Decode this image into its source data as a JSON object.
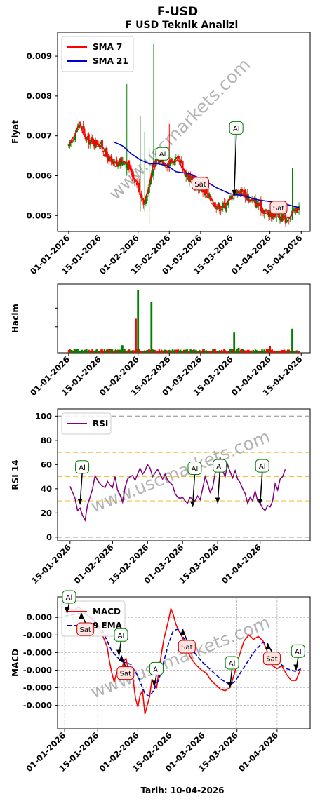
{
  "header": {
    "title": "F-USD",
    "subtitle": "F USD Teknik Analizi",
    "watermark": "www.uscmarkets.com",
    "footer": "Tarih: 10-04-2026"
  },
  "colors": {
    "up": "#008000",
    "down": "#ff0000",
    "sma7": "#ff0000",
    "sma21": "#0000cd",
    "rsi": "#800080",
    "macd": "#ff0000",
    "signal": "#0000cd",
    "buy_edge": "#008000",
    "buy_fill": "#ffffff",
    "sell_edge": "#cc0000",
    "sell_fill": "#ffe4e1",
    "band": "#f0c040"
  },
  "chart_data": [
    {
      "id": "price",
      "type": "line",
      "ylabel": "Fiyat",
      "ylim": [
        0.0046,
        0.0096
      ],
      "yticks": [
        "0.005",
        "0.006",
        "0.007",
        "0.008",
        "0.009"
      ],
      "ytick_values": [
        0.005,
        0.006,
        0.007,
        0.008,
        0.009
      ],
      "xticks": [
        "01-01-2026",
        "15-01-2026",
        "01-02-2026",
        "15-02-2026",
        "01-03-2026",
        "15-03-2026",
        "01-04-2026",
        "15-04-2026"
      ],
      "xtick_days": [
        0,
        14,
        31,
        45,
        59,
        73,
        90,
        104
      ],
      "xlim_days": [
        -5,
        108
      ],
      "legend": [
        {
          "name": "SMA 7"
        },
        {
          "name": "SMA 21"
        }
      ],
      "close_anchors": [
        [
          0,
          0.0067
        ],
        [
          3,
          0.0071
        ],
        [
          5,
          0.0073
        ],
        [
          8,
          0.0069
        ],
        [
          14,
          0.0068
        ],
        [
          18,
          0.0064
        ],
        [
          20,
          0.00625
        ],
        [
          22,
          0.0063
        ],
        [
          25,
          0.0064
        ],
        [
          28,
          0.0061
        ],
        [
          31,
          0.00575
        ],
        [
          34,
          0.0053
        ],
        [
          36,
          0.0058
        ],
        [
          38,
          0.0063
        ],
        [
          41,
          0.0064
        ],
        [
          44,
          0.0063
        ],
        [
          47,
          0.0064
        ],
        [
          50,
          0.0063
        ],
        [
          53,
          0.006
        ],
        [
          56,
          0.0058
        ],
        [
          59,
          0.0057
        ],
        [
          62,
          0.0055
        ],
        [
          65,
          0.0053
        ],
        [
          68,
          0.0052
        ],
        [
          71,
          0.0053
        ],
        [
          73,
          0.0055
        ],
        [
          75,
          0.0056
        ],
        [
          78,
          0.0056
        ],
        [
          81,
          0.0054
        ],
        [
          84,
          0.0053
        ],
        [
          86,
          0.0052
        ],
        [
          88,
          0.0051
        ],
        [
          90,
          0.005
        ],
        [
          92,
          0.0051
        ],
        [
          94,
          0.005
        ],
        [
          96,
          0.0049
        ],
        [
          97,
          0.0049
        ],
        [
          99,
          0.005
        ],
        [
          101,
          0.0051
        ],
        [
          103,
          0.0052
        ]
      ],
      "sma21_anchors": [
        [
          20,
          0.00685
        ],
        [
          24,
          0.00675
        ],
        [
          28,
          0.00655
        ],
        [
          32,
          0.0064
        ],
        [
          36,
          0.0063
        ],
        [
          40,
          0.0063
        ],
        [
          44,
          0.00625
        ],
        [
          48,
          0.0061
        ],
        [
          54,
          0.00605
        ],
        [
          60,
          0.0059
        ],
        [
          66,
          0.0057
        ],
        [
          72,
          0.00555
        ],
        [
          78,
          0.0055
        ],
        [
          84,
          0.0054
        ],
        [
          90,
          0.00535
        ],
        [
          96,
          0.0053
        ],
        [
          103,
          0.0052
        ]
      ],
      "spikes": [
        {
          "day": 26,
          "high": 0.0083,
          "low": 0.006
        },
        {
          "day": 32,
          "high": 0.0075,
          "low": 0.0051
        },
        {
          "day": 34,
          "high": 0.0071,
          "low": 0.0051
        },
        {
          "day": 38,
          "high": 0.0093,
          "low": 0.0059
        },
        {
          "day": 36,
          "high": 0.0067,
          "low": 0.0048
        },
        {
          "day": 45,
          "high": 0.0073,
          "low": 0.0061
        },
        {
          "day": 74,
          "high": 0.0072,
          "low": 0.0054
        },
        {
          "day": 100,
          "high": 0.0062,
          "low": 0.0049
        }
      ],
      "annotations": [
        {
          "label": "Al",
          "x": 74,
          "y": 0.0055,
          "text_y": 0.0072,
          "kind": "buy"
        },
        {
          "label": "Al",
          "x": 41,
          "y": 0.00635,
          "text_y": 0.00655,
          "kind": "buy"
        },
        {
          "label": "Sat",
          "x": 57,
          "y": 0.0058,
          "text_y": 0.0058,
          "kind": "sell"
        },
        {
          "label": "Sat",
          "x": 92,
          "y": 0.0051,
          "text_y": 0.0052,
          "kind": "sell"
        }
      ]
    },
    {
      "id": "volume",
      "type": "bar",
      "ylabel": "Hacim",
      "xticks": [
        "01-01-2026",
        "15-01-2026",
        "01-02-2026",
        "15-02-2026",
        "01-03-2026",
        "15-03-2026",
        "01-04-2026",
        "15-04-2026"
      ],
      "xtick_days": [
        0,
        14,
        31,
        45,
        59,
        73,
        90,
        104
      ],
      "xlim_days": [
        -5,
        108
      ],
      "ymax": 100,
      "big_bars": [
        {
          "day": 30,
          "value": 54,
          "up": false
        },
        {
          "day": 31,
          "value": 100,
          "up": true
        },
        {
          "day": 37,
          "value": 80,
          "up": true
        },
        {
          "day": 74,
          "value": 32,
          "up": true
        },
        {
          "day": 76,
          "value": 8,
          "up": true
        },
        {
          "day": 90,
          "value": 10,
          "up": false
        },
        {
          "day": 100,
          "value": 38,
          "up": true
        },
        {
          "day": 24,
          "value": 12,
          "up": true
        }
      ]
    },
    {
      "id": "rsi",
      "type": "line",
      "ylabel": "RSI 14",
      "ylim": [
        -3,
        106
      ],
      "yticks": [
        "0",
        "20",
        "40",
        "60",
        "80",
        "100"
      ],
      "ytick_values": [
        0,
        20,
        40,
        60,
        80,
        100
      ],
      "hlines": {
        "gray": [
          0,
          100
        ],
        "band": [
          30,
          50,
          70
        ]
      },
      "xticks": [
        "15-01-2026",
        "01-02-2026",
        "15-02-2026",
        "01-03-2026",
        "15-03-2026",
        "01-04-2026"
      ],
      "xtick_days": [
        14,
        31,
        45,
        59,
        73,
        90
      ],
      "xlim_days": [
        9,
        110
      ],
      "legend": [
        {
          "name": "RSI"
        }
      ],
      "anchors": [
        [
          14,
          42
        ],
        [
          16,
          32
        ],
        [
          17,
          22
        ],
        [
          18,
          24
        ],
        [
          19,
          18
        ],
        [
          20,
          14
        ],
        [
          21,
          27
        ],
        [
          22,
          33
        ],
        [
          23,
          40
        ],
        [
          24,
          51
        ],
        [
          25,
          47
        ],
        [
          26,
          44
        ],
        [
          27,
          42
        ],
        [
          28,
          41
        ],
        [
          29,
          46
        ],
        [
          30,
          43
        ],
        [
          31,
          41
        ],
        [
          32,
          50
        ],
        [
          33,
          39
        ],
        [
          34,
          35
        ],
        [
          35,
          29
        ],
        [
          36,
          41
        ],
        [
          37,
          48
        ],
        [
          38,
          50
        ],
        [
          39,
          51
        ],
        [
          40,
          47
        ],
        [
          41,
          52
        ],
        [
          42,
          57
        ],
        [
          43,
          52
        ],
        [
          44,
          55
        ],
        [
          45,
          60
        ],
        [
          46,
          57
        ],
        [
          47,
          50
        ],
        [
          48,
          53
        ],
        [
          49,
          56
        ],
        [
          50,
          52
        ],
        [
          51,
          48
        ],
        [
          52,
          52
        ],
        [
          53,
          47
        ],
        [
          54,
          45
        ],
        [
          55,
          43
        ],
        [
          56,
          36
        ],
        [
          57,
          33
        ],
        [
          58,
          32
        ],
        [
          59,
          33
        ],
        [
          60,
          30
        ],
        [
          61,
          28
        ],
        [
          62,
          33
        ],
        [
          63,
          31
        ],
        [
          64,
          30
        ],
        [
          65,
          34
        ],
        [
          66,
          31
        ],
        [
          67,
          40
        ],
        [
          68,
          50
        ],
        [
          69,
          44
        ],
        [
          70,
          37
        ],
        [
          71,
          41
        ],
        [
          72,
          53
        ],
        [
          73,
          58
        ],
        [
          74,
          66
        ],
        [
          75,
          55
        ],
        [
          76,
          50
        ],
        [
          77,
          60
        ],
        [
          78,
          54
        ],
        [
          79,
          49
        ],
        [
          80,
          55
        ],
        [
          81,
          48
        ],
        [
          82,
          45
        ],
        [
          83,
          40
        ],
        [
          84,
          36
        ],
        [
          85,
          28
        ],
        [
          86,
          33
        ],
        [
          87,
          30
        ],
        [
          88,
          38
        ],
        [
          89,
          30
        ],
        [
          90,
          28
        ],
        [
          91,
          24
        ],
        [
          92,
          22
        ],
        [
          93,
          26
        ],
        [
          94,
          25
        ],
        [
          95,
          30
        ],
        [
          96,
          44
        ],
        [
          97,
          39
        ],
        [
          98,
          48
        ],
        [
          99,
          50
        ],
        [
          100,
          56
        ]
      ],
      "annotations": [
        {
          "label": "Al",
          "x": 18,
          "y": 27,
          "text_y": 58,
          "kind": "buy"
        },
        {
          "label": "Al",
          "x": 63,
          "y": 25,
          "text_y": 57,
          "kind": "buy"
        },
        {
          "label": "Al",
          "x": 73,
          "y": 28,
          "text_y": 59,
          "kind": "buy"
        },
        {
          "label": "Al",
          "x": 90,
          "y": 27,
          "text_y": 59,
          "kind": "buy"
        }
      ]
    },
    {
      "id": "macd",
      "type": "line",
      "ylabel": "MACD",
      "ylim": [
        -7.6,
        1.4
      ],
      "yticks": [
        "0.000",
        "-0.000",
        "-0.000",
        "-0.000",
        "-0.000",
        "-0.000"
      ],
      "ytick_values": [
        0,
        -1.2,
        -2.4,
        -3.6,
        -4.8,
        -6.0
      ],
      "xticks": [
        "01-01-2026",
        "15-01-2026",
        "01-02-2026",
        "15-02-2026",
        "01-03-2026",
        "15-03-2026",
        "01-04-2026"
      ],
      "xtick_days": [
        0,
        14,
        31,
        45,
        59,
        73,
        90
      ],
      "xlim_days": [
        -3,
        104
      ],
      "legend": [
        {
          "name": "MACD"
        },
        {
          "name": "9 EMA"
        }
      ],
      "macd_anchors": [
        [
          0,
          0.3
        ],
        [
          2,
          0.6
        ],
        [
          4,
          0.5
        ],
        [
          6,
          0.7
        ],
        [
          8,
          0.4
        ],
        [
          10,
          0.1
        ],
        [
          12,
          -0.2
        ],
        [
          14,
          -0.6
        ],
        [
          16,
          -1.2
        ],
        [
          18,
          -2.0
        ],
        [
          19,
          -3.0
        ],
        [
          20,
          -3.8
        ],
        [
          21,
          -4.4
        ],
        [
          22,
          -3.8
        ],
        [
          23,
          -3.5
        ],
        [
          24,
          -3.8
        ],
        [
          25,
          -3.0
        ],
        [
          26,
          -2.8
        ],
        [
          27,
          -3.6
        ],
        [
          28,
          -4.0
        ],
        [
          29,
          -4.2
        ],
        [
          30,
          -5.5
        ],
        [
          31,
          -6.1
        ],
        [
          32,
          -5.3
        ],
        [
          33,
          -5.0
        ],
        [
          34,
          -6.6
        ],
        [
          35,
          -6.0
        ],
        [
          36,
          -5.4
        ],
        [
          37,
          -4.2
        ],
        [
          38,
          -4.7
        ],
        [
          39,
          -4.8
        ],
        [
          40,
          -3.5
        ],
        [
          42,
          -1.5
        ],
        [
          44,
          -0.2
        ],
        [
          45,
          0.6
        ],
        [
          46,
          0.2
        ],
        [
          47,
          -0.4
        ],
        [
          48,
          -0.8
        ],
        [
          50,
          -1.4
        ],
        [
          52,
          -2.3
        ],
        [
          54,
          -2.9
        ],
        [
          56,
          -3.3
        ],
        [
          58,
          -3.6
        ],
        [
          60,
          -3.8
        ],
        [
          62,
          -4.3
        ],
        [
          64,
          -4.6
        ],
        [
          66,
          -4.9
        ],
        [
          68,
          -5.0
        ],
        [
          70,
          -4.8
        ],
        [
          72,
          -3.8
        ],
        [
          74,
          -2.6
        ],
        [
          76,
          -1.6
        ],
        [
          78,
          -1.2
        ],
        [
          80,
          -1.5
        ],
        [
          82,
          -1.3
        ],
        [
          84,
          -1.6
        ],
        [
          86,
          -2.4
        ],
        [
          88,
          -3.3
        ],
        [
          90,
          -3.5
        ],
        [
          92,
          -3.3
        ],
        [
          94,
          -3.9
        ],
        [
          96,
          -4.3
        ],
        [
          98,
          -4.3
        ],
        [
          100,
          -3.5
        ]
      ],
      "signal_anchors": [
        [
          0,
          0.1
        ],
        [
          4,
          0.2
        ],
        [
          8,
          0.3
        ],
        [
          12,
          -0.1
        ],
        [
          16,
          -0.9
        ],
        [
          20,
          -2.3
        ],
        [
          24,
          -3.0
        ],
        [
          28,
          -3.2
        ],
        [
          31,
          -4.0
        ],
        [
          34,
          -5.2
        ],
        [
          36,
          -5.4
        ],
        [
          38,
          -4.9
        ],
        [
          40,
          -4.2
        ],
        [
          42,
          -3.0
        ],
        [
          44,
          -1.8
        ],
        [
          46,
          -0.9
        ],
        [
          48,
          -0.8
        ],
        [
          50,
          -1.3
        ],
        [
          54,
          -2.2
        ],
        [
          58,
          -3.0
        ],
        [
          62,
          -3.6
        ],
        [
          66,
          -4.2
        ],
        [
          70,
          -4.6
        ],
        [
          72,
          -4.4
        ],
        [
          76,
          -3.4
        ],
        [
          80,
          -2.4
        ],
        [
          84,
          -1.7
        ],
        [
          86,
          -1.8
        ],
        [
          88,
          -2.4
        ],
        [
          90,
          -3.0
        ],
        [
          94,
          -3.5
        ],
        [
          98,
          -3.7
        ],
        [
          100,
          -3.5
        ]
      ],
      "annotations": [
        {
          "label": "Al",
          "x": 1,
          "y": 0.3,
          "text_y": 1.4,
          "kind": "buy"
        },
        {
          "label": "Sat",
          "x": 7,
          "y": 0.3,
          "text_y": -0.8,
          "kind": "sell"
        },
        {
          "label": "Al",
          "x": 23,
          "y": -2.6,
          "text_y": -1.2,
          "kind": "buy"
        },
        {
          "label": "Sat",
          "x": 24,
          "y": -2.6,
          "text_y": -3.8,
          "kind": "sell"
        },
        {
          "label": "Al",
          "x": 38,
          "y": -4.7,
          "text_y": -3.5,
          "kind": "buy"
        },
        {
          "label": "Sat",
          "x": 50,
          "y": -0.8,
          "text_y": -2.0,
          "kind": "sell"
        },
        {
          "label": "Al",
          "x": 70,
          "y": -4.8,
          "text_y": -3.1,
          "kind": "buy"
        },
        {
          "label": "Sat",
          "x": 86,
          "y": -1.8,
          "text_y": -2.8,
          "kind": "sell"
        },
        {
          "label": "Al",
          "x": 98,
          "y": -3.6,
          "text_y": -2.3,
          "kind": "buy"
        }
      ]
    }
  ]
}
